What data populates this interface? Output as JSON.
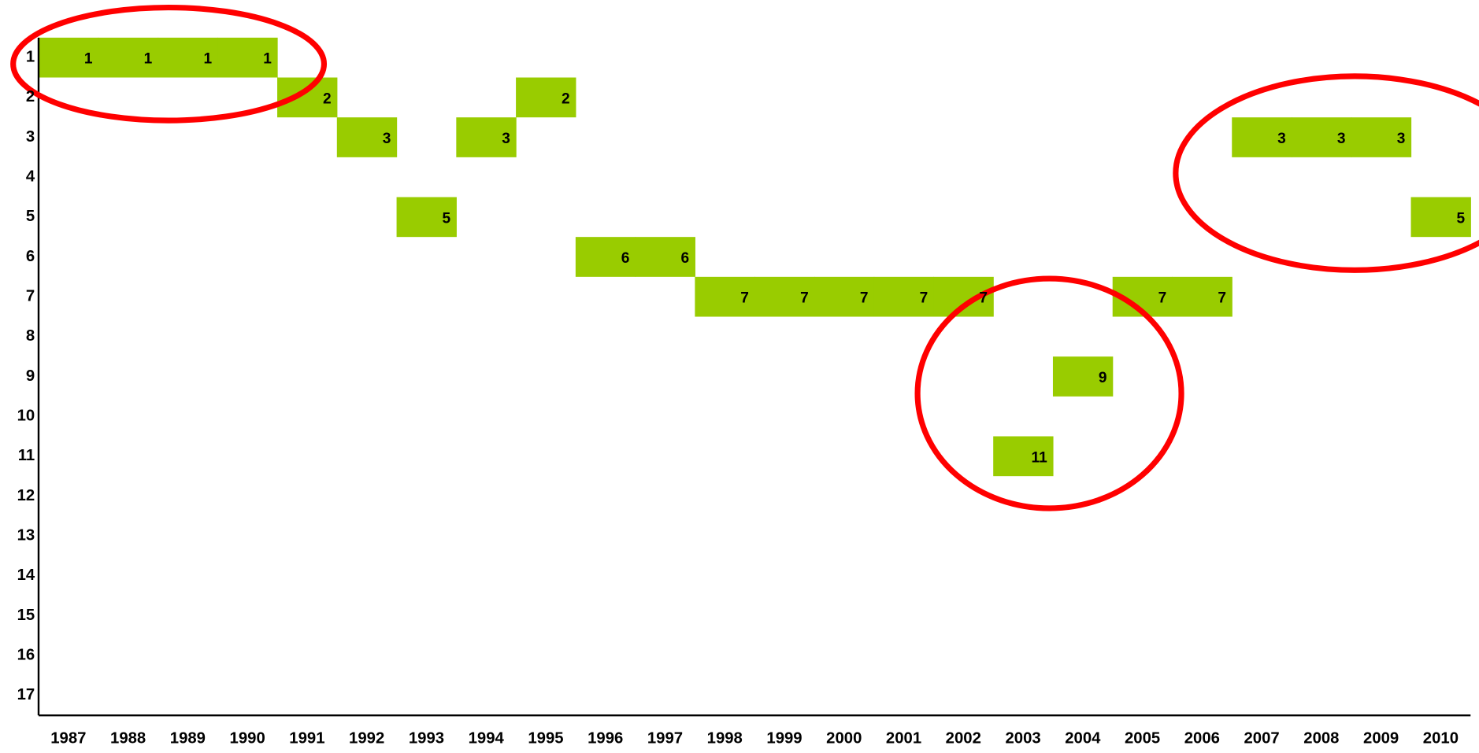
{
  "chart_data": {
    "type": "rank-bar",
    "categories": [
      "1987",
      "1988",
      "1989",
      "1990",
      "1991",
      "1992",
      "1993",
      "1994",
      "1995",
      "1996",
      "1997",
      "1998",
      "1999",
      "2000",
      "2001",
      "2002",
      "2003",
      "2004",
      "2005",
      "2006",
      "2007",
      "2008",
      "2009",
      "2010"
    ],
    "values": [
      1,
      1,
      1,
      1,
      2,
      3,
      5,
      3,
      2,
      6,
      6,
      7,
      7,
      7,
      7,
      7,
      11,
      9,
      7,
      7,
      3,
      3,
      3,
      5
    ],
    "color": "#99cc00",
    "ylim": [
      0.5,
      17.5
    ],
    "y_inverted": true,
    "yticks": [
      1,
      2,
      3,
      4,
      5,
      6,
      7,
      8,
      9,
      10,
      11,
      12,
      13,
      14,
      15,
      16,
      17
    ],
    "annotation_color": "#ff0000"
  }
}
